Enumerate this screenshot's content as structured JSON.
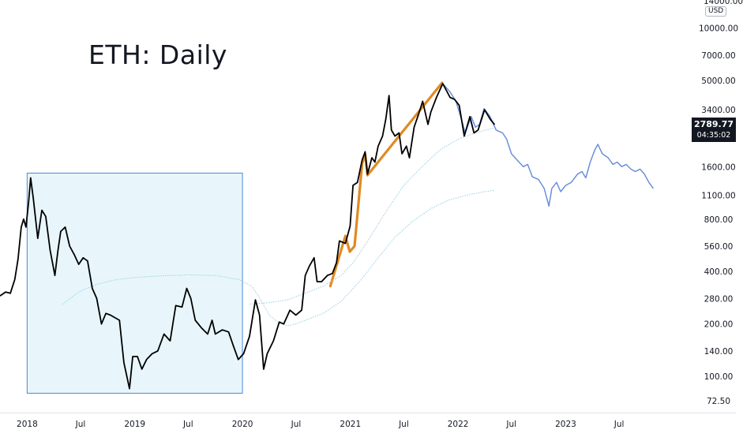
{
  "chart_data": {
    "type": "line",
    "title": "ETH: Daily",
    "currency": "USD",
    "scale": "log",
    "y_ticks": [
      72.5,
      100,
      140,
      200,
      280,
      400,
      560,
      800,
      1100,
      1600,
      3400,
      5000,
      7000,
      10000
    ],
    "y_tick_labels": [
      "72.50",
      "100.00",
      "140.00",
      "200.00",
      "280.00",
      "400.00",
      "560.00",
      "800.00",
      "1100.00",
      "1600.00",
      "3400.00",
      "5000.00",
      "7000.00",
      "10000.00"
    ],
    "y_top_partial_label": "14000.00",
    "ylim": [
      62,
      14500
    ],
    "x_ticks": [
      {
        "date": "2018-01-01",
        "label": "2018"
      },
      {
        "date": "2018-07-01",
        "label": "Jul"
      },
      {
        "date": "2019-01-01",
        "label": "2019"
      },
      {
        "date": "2019-07-01",
        "label": "Jul"
      },
      {
        "date": "2020-01-01",
        "label": "2020"
      },
      {
        "date": "2020-07-01",
        "label": "Jul"
      },
      {
        "date": "2021-01-01",
        "label": "2021"
      },
      {
        "date": "2021-07-01",
        "label": "Jul"
      },
      {
        "date": "2022-01-01",
        "label": "2022"
      },
      {
        "date": "2022-07-01",
        "label": "Jul"
      },
      {
        "date": "2023-01-01",
        "label": "2023"
      },
      {
        "date": "2023-07-01",
        "label": "Jul"
      }
    ],
    "xlim": [
      "2017-10-01",
      "2024-01-31"
    ],
    "grid": false,
    "last_price": {
      "value": "2789.77",
      "countdown": "04:35:02"
    },
    "series": [
      {
        "color": "#000000",
        "points": [
          [
            "2017-10-01",
            290
          ],
          [
            "2017-10-20",
            305
          ],
          [
            "2017-11-05",
            300
          ],
          [
            "2017-11-20",
            360
          ],
          [
            "2017-12-01",
            470
          ],
          [
            "2017-12-12",
            720
          ],
          [
            "2017-12-20",
            800
          ],
          [
            "2017-12-28",
            720
          ],
          [
            "2018-01-06",
            1000
          ],
          [
            "2018-01-13",
            1380
          ],
          [
            "2018-01-22",
            1050
          ],
          [
            "2018-02-06",
            620
          ],
          [
            "2018-02-20",
            900
          ],
          [
            "2018-03-05",
            830
          ],
          [
            "2018-03-20",
            530
          ],
          [
            "2018-04-05",
            380
          ],
          [
            "2018-04-15",
            520
          ],
          [
            "2018-04-25",
            680
          ],
          [
            "2018-05-10",
            720
          ],
          [
            "2018-05-25",
            560
          ],
          [
            "2018-06-10",
            500
          ],
          [
            "2018-06-25",
            440
          ],
          [
            "2018-07-10",
            480
          ],
          [
            "2018-07-25",
            460
          ],
          [
            "2018-08-10",
            320
          ],
          [
            "2018-08-25",
            280
          ],
          [
            "2018-09-10",
            200
          ],
          [
            "2018-09-25",
            230
          ],
          [
            "2018-10-10",
            225
          ],
          [
            "2018-11-10",
            210
          ],
          [
            "2018-11-25",
            120
          ],
          [
            "2018-12-14",
            85
          ],
          [
            "2018-12-25",
            130
          ],
          [
            "2019-01-10",
            130
          ],
          [
            "2019-01-25",
            110
          ],
          [
            "2019-02-10",
            125
          ],
          [
            "2019-03-01",
            135
          ],
          [
            "2019-03-20",
            140
          ],
          [
            "2019-04-10",
            175
          ],
          [
            "2019-05-01",
            160
          ],
          [
            "2019-05-20",
            255
          ],
          [
            "2019-06-10",
            250
          ],
          [
            "2019-06-26",
            320
          ],
          [
            "2019-07-10",
            280
          ],
          [
            "2019-07-25",
            210
          ],
          [
            "2019-08-15",
            190
          ],
          [
            "2019-09-05",
            175
          ],
          [
            "2019-09-20",
            210
          ],
          [
            "2019-10-01",
            175
          ],
          [
            "2019-10-25",
            185
          ],
          [
            "2019-11-15",
            180
          ],
          [
            "2019-12-01",
            150
          ],
          [
            "2019-12-18",
            125
          ],
          [
            "2020-01-05",
            135
          ],
          [
            "2020-01-25",
            170
          ],
          [
            "2020-02-14",
            275
          ],
          [
            "2020-02-28",
            225
          ],
          [
            "2020-03-13",
            110
          ],
          [
            "2020-03-25",
            135
          ],
          [
            "2020-04-15",
            160
          ],
          [
            "2020-05-05",
            205
          ],
          [
            "2020-05-20",
            200
          ],
          [
            "2020-06-10",
            240
          ],
          [
            "2020-06-30",
            225
          ],
          [
            "2020-07-20",
            240
          ],
          [
            "2020-08-01",
            380
          ],
          [
            "2020-08-15",
            430
          ],
          [
            "2020-08-31",
            480
          ],
          [
            "2020-09-10",
            350
          ],
          [
            "2020-09-25",
            350
          ],
          [
            "2020-10-15",
            380
          ],
          [
            "2020-11-01",
            390
          ],
          [
            "2020-11-15",
            450
          ],
          [
            "2020-11-25",
            600
          ],
          [
            "2020-12-15",
            580
          ],
          [
            "2020-12-31",
            730
          ],
          [
            "2021-01-10",
            1250
          ],
          [
            "2021-01-25",
            1300
          ],
          [
            "2021-02-10",
            1750
          ],
          [
            "2021-02-20",
            1950
          ],
          [
            "2021-02-28",
            1450
          ],
          [
            "2021-03-15",
            1800
          ],
          [
            "2021-03-25",
            1700
          ],
          [
            "2021-04-05",
            2100
          ],
          [
            "2021-04-20",
            2400
          ],
          [
            "2021-05-01",
            3000
          ],
          [
            "2021-05-12",
            4100
          ],
          [
            "2021-05-20",
            2600
          ],
          [
            "2021-06-01",
            2400
          ],
          [
            "2021-06-15",
            2500
          ],
          [
            "2021-06-25",
            1900
          ],
          [
            "2021-07-10",
            2100
          ],
          [
            "2021-07-20",
            1800
          ],
          [
            "2021-08-05",
            2700
          ],
          [
            "2021-08-20",
            3200
          ],
          [
            "2021-09-03",
            3800
          ],
          [
            "2021-09-21",
            2800
          ],
          [
            "2021-10-01",
            3300
          ],
          [
            "2021-10-20",
            4000
          ],
          [
            "2021-11-10",
            4800
          ],
          [
            "2021-11-25",
            4300
          ],
          [
            "2021-12-05",
            4000
          ],
          [
            "2021-12-20",
            3900
          ],
          [
            "2022-01-05",
            3600
          ],
          [
            "2022-01-22",
            2400
          ],
          [
            "2022-02-10",
            3100
          ],
          [
            "2022-02-24",
            2500
          ],
          [
            "2022-03-10",
            2600
          ],
          [
            "2022-04-01",
            3400
          ],
          [
            "2022-04-20",
            3000
          ],
          [
            "2022-05-05",
            2789.77
          ]
        ]
      },
      {
        "color": "#6b8fd9",
        "points": [
          [
            "2021-11-10",
            4800
          ],
          [
            "2021-12-05",
            4300
          ],
          [
            "2021-12-25",
            3800
          ],
          [
            "2022-01-15",
            2900
          ],
          [
            "2022-01-25",
            2500
          ],
          [
            "2022-02-15",
            3100
          ],
          [
            "2022-03-01",
            2700
          ],
          [
            "2022-03-15",
            2800
          ],
          [
            "2022-03-30",
            3450
          ],
          [
            "2022-04-20",
            3100
          ],
          [
            "2022-05-10",
            2600
          ],
          [
            "2022-06-01",
            2500
          ],
          [
            "2022-06-15",
            2300
          ],
          [
            "2022-07-01",
            1900
          ],
          [
            "2022-07-20",
            1750
          ],
          [
            "2022-08-10",
            1600
          ],
          [
            "2022-08-25",
            1650
          ],
          [
            "2022-09-10",
            1400
          ],
          [
            "2022-10-01",
            1350
          ],
          [
            "2022-10-20",
            1200
          ],
          [
            "2022-11-05",
            950
          ],
          [
            "2022-11-15",
            1200
          ],
          [
            "2022-12-01",
            1300
          ],
          [
            "2022-12-15",
            1150
          ],
          [
            "2023-01-01",
            1250
          ],
          [
            "2023-01-20",
            1300
          ],
          [
            "2023-02-10",
            1450
          ],
          [
            "2023-02-25",
            1500
          ],
          [
            "2023-03-10",
            1380
          ],
          [
            "2023-03-25",
            1700
          ],
          [
            "2023-04-10",
            2000
          ],
          [
            "2023-04-20",
            2150
          ],
          [
            "2023-05-05",
            1900
          ],
          [
            "2023-05-25",
            1800
          ],
          [
            "2023-06-10",
            1650
          ],
          [
            "2023-06-25",
            1700
          ],
          [
            "2023-07-10",
            1600
          ],
          [
            "2023-07-25",
            1650
          ],
          [
            "2023-08-10",
            1550
          ],
          [
            "2023-08-25",
            1500
          ],
          [
            "2023-09-10",
            1550
          ],
          [
            "2023-09-25",
            1450
          ],
          [
            "2023-10-10",
            1300
          ],
          [
            "2023-10-25",
            1200
          ]
        ]
      },
      {
        "color": "#9fd4e6",
        "dashed": true,
        "points": [
          [
            "2018-05-01",
            260
          ],
          [
            "2018-07-01",
            310
          ],
          [
            "2018-09-01",
            340
          ],
          [
            "2018-11-01",
            360
          ],
          [
            "2019-01-01",
            370
          ],
          [
            "2019-04-01",
            378
          ],
          [
            "2019-07-01",
            383
          ],
          [
            "2019-10-01",
            380
          ],
          [
            "2019-12-20",
            360
          ],
          [
            "2020-02-01",
            330
          ],
          [
            "2020-03-01",
            280
          ],
          [
            "2020-04-01",
            225
          ],
          [
            "2020-05-01",
            205
          ],
          [
            "2020-06-01",
            195
          ],
          [
            "2020-07-01",
            200
          ],
          [
            "2020-08-01",
            210
          ],
          [
            "2020-10-01",
            230
          ],
          [
            "2020-12-01",
            270
          ],
          [
            "2021-02-01",
            350
          ],
          [
            "2021-04-01",
            470
          ],
          [
            "2021-06-01",
            630
          ],
          [
            "2021-08-01",
            780
          ],
          [
            "2021-10-01",
            920
          ],
          [
            "2021-12-01",
            1030
          ],
          [
            "2022-02-01",
            1100
          ],
          [
            "2022-04-01",
            1150
          ],
          [
            "2022-05-05",
            1170
          ]
        ]
      },
      {
        "color": "#9fd4e6",
        "dashed": true,
        "points": [
          [
            "2020-01-25",
            260
          ],
          [
            "2020-04-01",
            265
          ],
          [
            "2020-06-01",
            275
          ],
          [
            "2020-08-01",
            300
          ],
          [
            "2020-10-01",
            330
          ],
          [
            "2020-12-01",
            380
          ],
          [
            "2021-01-15",
            460
          ],
          [
            "2021-03-01",
            600
          ],
          [
            "2021-05-01",
            880
          ],
          [
            "2021-07-01",
            1250
          ],
          [
            "2021-09-01",
            1600
          ],
          [
            "2021-11-01",
            2000
          ],
          [
            "2022-01-01",
            2300
          ],
          [
            "2022-03-01",
            2500
          ],
          [
            "2022-05-05",
            2680
          ]
        ]
      }
    ],
    "annotations": [
      {
        "kind": "rect",
        "from": [
          "2018-01-01",
          1470
        ],
        "to": [
          "2020-01-01",
          80
        ],
        "fill": "#e8f6fb",
        "stroke": "#4a86d8"
      },
      {
        "kind": "path",
        "color": "#e08a22",
        "points": [
          [
            "2020-10-25",
            330
          ],
          [
            "2020-12-15",
            640
          ],
          [
            "2020-12-30",
            520
          ],
          [
            "2021-01-15",
            560
          ],
          [
            "2021-02-10",
            1680
          ],
          [
            "2021-02-20",
            1880
          ],
          [
            "2021-02-28",
            1430
          ],
          [
            "2021-11-08",
            4850
          ]
        ]
      }
    ]
  }
}
